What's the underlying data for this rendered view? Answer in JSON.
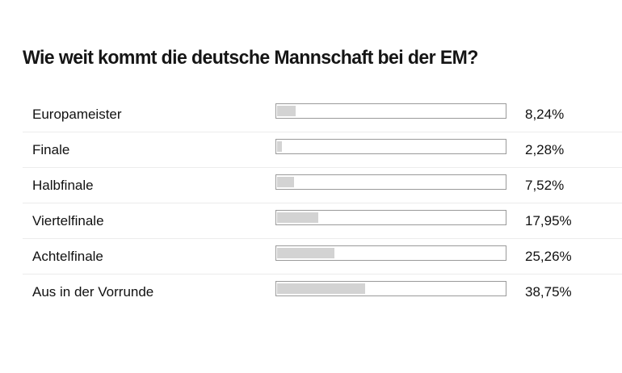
{
  "poll": {
    "question": "Wie weit kommt die deutsche Mannschaft bei der EM?",
    "options": [
      {
        "label": "Europameister",
        "percent_text": "8,24%",
        "fraction": 0.0824
      },
      {
        "label": "Finale",
        "percent_text": "2,28%",
        "fraction": 0.0228
      },
      {
        "label": "Halbfinale",
        "percent_text": "7,52%",
        "fraction": 0.0752
      },
      {
        "label": "Viertelfinale",
        "percent_text": "17,95%",
        "fraction": 0.1795
      },
      {
        "label": "Achtelfinale",
        "percent_text": "25,26%",
        "fraction": 0.2526
      },
      {
        "label": "Aus in der Vorrunde",
        "percent_text": "38,75%",
        "fraction": 0.3875
      }
    ],
    "colors": {
      "bar_fill": "#d3d3d3",
      "bar_border": "#9a9a9a",
      "text": "#111111"
    }
  }
}
